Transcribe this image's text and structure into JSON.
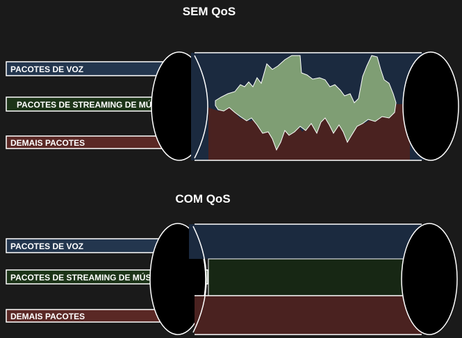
{
  "top": {
    "title": "SEM QoS",
    "labels": {
      "voice": "PACOTES DE VOZ",
      "streaming": "PACOTES DE STREAMING DE MÚSICA",
      "other": "DEMAIS PACOTES"
    }
  },
  "bottom": {
    "title": "COM QoS",
    "labels": {
      "voice": "PACOTES DE VOZ",
      "streaming": "PACOTES DE STREAMING DE MÚSICA",
      "other": "DEMAIS PACOTES"
    }
  },
  "colors": {
    "background": "#1a1a1a",
    "voice": "#1b2a3f",
    "voice_label": "#23364e",
    "streaming_top": "#7f9e74",
    "streaming_bottom": "#172714",
    "streaming_label": "#1c3418",
    "other": "#4a2220",
    "other_label": "#5a2825",
    "outline": "#ffffff",
    "cap": "#000000"
  }
}
